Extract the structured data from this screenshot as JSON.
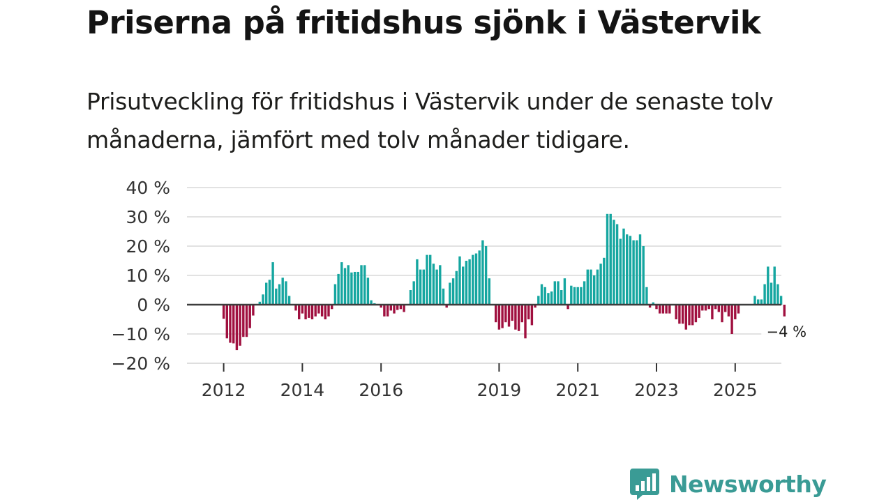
{
  "title": "Priserna på fritidshus sjönk i Västervik",
  "subtitle": "Prisutveckling för fritidshus i Västervik under de senaste tolv månaderna, jämfört med tolv månader tidigare.",
  "colors": {
    "positive": "#15a6a0",
    "negative": "#a0103f",
    "grid": "#d9d9d9",
    "zero_line": "#3d3d3d"
  },
  "brand": {
    "name": "Newsworthy",
    "icon": "bar-chart-bubble-icon"
  },
  "chart_data": {
    "type": "bar",
    "title": "Priserna på fritidshus sjönk i Västervik",
    "ylabel": "",
    "xlabel": "",
    "ylim": [
      -20,
      40
    ],
    "y_ticks": [
      40,
      30,
      20,
      10,
      0,
      -10,
      -20
    ],
    "y_tick_labels": [
      "40 %",
      "30 %",
      "20 %",
      "10 %",
      "0 %",
      "−10 %",
      "−20 %"
    ],
    "x_tick_labels": [
      "2012",
      "2014",
      "2016",
      "2019",
      "2021",
      "2023",
      "2025"
    ],
    "x_tick_years": [
      2012,
      2014,
      2016,
      2019,
      2021,
      2023,
      2025
    ],
    "start": "2011-10",
    "end": "2025-11",
    "end_label": "−4 %",
    "values": [
      0,
      0,
      0,
      -4.8,
      -11.5,
      -13,
      -13.2,
      -15.5,
      -14,
      -11,
      -11,
      -8,
      -3.7,
      0,
      1,
      3.5,
      7.5,
      8.5,
      14.5,
      5.5,
      7,
      9.2,
      8,
      3,
      0,
      -2,
      -5,
      -3,
      -5,
      -4.5,
      -5,
      -4,
      -3,
      -4,
      -5,
      -4,
      -1.5,
      7,
      10.5,
      14.5,
      12.5,
      13.5,
      11,
      11.2,
      11.2,
      13.5,
      13.5,
      9.2,
      1.5,
      0.5,
      0,
      -1,
      -4,
      -4,
      -2,
      -3,
      -1.8,
      -1.5,
      -2.5,
      0,
      5,
      8,
      15.5,
      12,
      12,
      17,
      17,
      14,
      12,
      13.5,
      5.5,
      -1,
      7.5,
      9,
      11.5,
      16.5,
      13,
      15,
      15.5,
      17,
      17.5,
      18.5,
      22,
      20,
      9,
      0,
      -6,
      -8.5,
      -8,
      -6,
      -7.5,
      -5.5,
      -8.5,
      -9,
      -6,
      -11.5,
      -5,
      -7,
      -1,
      3,
      7,
      6,
      4,
      4.5,
      8,
      8,
      5,
      9,
      -1.5,
      6.5,
      6,
      6,
      6,
      8,
      12,
      12,
      10,
      12,
      14,
      16,
      31,
      31,
      29,
      27.5,
      22.5,
      26,
      24,
      23.5,
      22,
      22,
      24,
      20,
      6,
      -1,
      0.8,
      -1.5,
      -3,
      -3,
      -3,
      -3,
      0,
      -5,
      -6.5,
      -6.5,
      -8.5,
      -7,
      -7,
      -6,
      -4.5,
      -2,
      -2,
      -1.5,
      -5,
      -1.5,
      -2.5,
      -6,
      -2.5,
      -4,
      -10,
      -5,
      -3,
      0,
      0,
      0,
      0,
      3,
      1.8,
      1.8,
      7,
      13,
      7.5,
      13,
      7,
      3,
      -4
    ]
  }
}
